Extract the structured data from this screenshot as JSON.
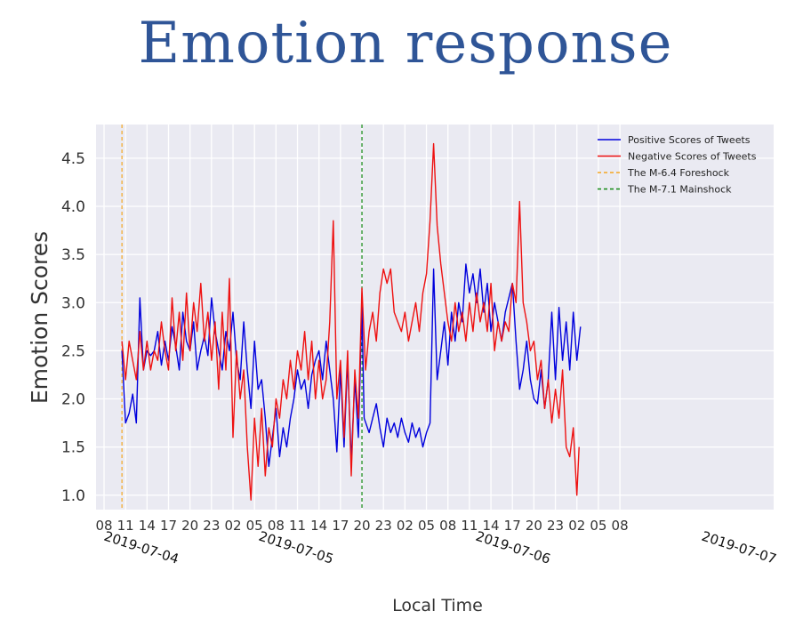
{
  "slide_title": "Emotion response",
  "chart_data": {
    "type": "line",
    "ylabel": "Emotion Scores",
    "xlabel": "Local Time",
    "x_hours_from": "2019-07-04 08:00",
    "x_tick_labels": [
      "08",
      "11",
      "14",
      "17",
      "20",
      "23",
      "02",
      "05",
      "08",
      "11",
      "14",
      "17",
      "20",
      "23",
      "02",
      "05",
      "08",
      "11",
      "14",
      "17",
      "20",
      "23",
      "02",
      "05",
      "08"
    ],
    "date_labels": [
      "2019-07-04",
      "2019-07-05",
      "2019-07-06",
      "2019-07-07"
    ],
    "y_ticks": [
      1.0,
      1.5,
      2.0,
      2.5,
      3.0,
      3.5,
      4.0,
      4.5
    ],
    "ylim": [
      0.85,
      4.85
    ],
    "grid": true,
    "legend_position": "top-right",
    "legend": [
      {
        "label": "Positive Scores of Tweets",
        "color": "#0000dd",
        "style": "solid"
      },
      {
        "label": "Negative Scores of Tweets",
        "color": "#ee1111",
        "style": "solid"
      },
      {
        "label": "The M-6.4 Foreshock",
        "color": "#f5a623",
        "style": "dashed"
      },
      {
        "label": "The M-7.1 Mainshock",
        "color": "#118811",
        "style": "dashed"
      }
    ],
    "vlines": [
      {
        "label": "The M-6.4 Foreshock",
        "x": 2.5,
        "color": "#f5a623"
      },
      {
        "label": "The M-7.1 Mainshock",
        "x": 36.0,
        "color": "#118811"
      }
    ],
    "series": [
      {
        "name": "Positive Scores of Tweets",
        "color": "#0000dd",
        "points": [
          [
            2.5,
            2.5
          ],
          [
            3.0,
            1.75
          ],
          [
            3.5,
            1.85
          ],
          [
            4.0,
            2.05
          ],
          [
            4.5,
            1.75
          ],
          [
            5.0,
            3.05
          ],
          [
            5.5,
            2.3
          ],
          [
            6.0,
            2.5
          ],
          [
            6.5,
            2.45
          ],
          [
            7.0,
            2.5
          ],
          [
            7.5,
            2.7
          ],
          [
            8.0,
            2.35
          ],
          [
            8.5,
            2.6
          ],
          [
            9.0,
            2.4
          ],
          [
            9.5,
            2.75
          ],
          [
            10.0,
            2.55
          ],
          [
            10.5,
            2.3
          ],
          [
            11.0,
            2.9
          ],
          [
            11.5,
            2.6
          ],
          [
            12.0,
            2.5
          ],
          [
            12.5,
            2.8
          ],
          [
            13.0,
            2.3
          ],
          [
            13.5,
            2.5
          ],
          [
            14.0,
            2.65
          ],
          [
            14.5,
            2.45
          ],
          [
            15.0,
            3.05
          ],
          [
            15.5,
            2.7
          ],
          [
            16.0,
            2.5
          ],
          [
            16.5,
            2.3
          ],
          [
            17.0,
            2.7
          ],
          [
            17.5,
            2.5
          ],
          [
            18.0,
            2.9
          ],
          [
            18.5,
            2.4
          ],
          [
            19.0,
            2.2
          ],
          [
            19.5,
            2.8
          ],
          [
            20.0,
            2.3
          ],
          [
            20.5,
            1.9
          ],
          [
            21.0,
            2.6
          ],
          [
            21.5,
            2.1
          ],
          [
            22.0,
            2.2
          ],
          [
            22.5,
            1.8
          ],
          [
            23.0,
            1.3
          ],
          [
            23.5,
            1.6
          ],
          [
            24.0,
            1.9
          ],
          [
            24.5,
            1.4
          ],
          [
            25.0,
            1.7
          ],
          [
            25.5,
            1.5
          ],
          [
            26.0,
            1.8
          ],
          [
            26.5,
            2.0
          ],
          [
            27.0,
            2.3
          ],
          [
            27.5,
            2.1
          ],
          [
            28.0,
            2.2
          ],
          [
            28.5,
            1.9
          ],
          [
            29.0,
            2.25
          ],
          [
            29.5,
            2.4
          ],
          [
            30.0,
            2.5
          ],
          [
            30.5,
            2.2
          ],
          [
            31.0,
            2.6
          ],
          [
            31.5,
            2.3
          ],
          [
            32.0,
            2.0
          ],
          [
            32.5,
            1.45
          ],
          [
            33.0,
            2.3
          ],
          [
            33.5,
            1.5
          ],
          [
            34.0,
            2.4
          ],
          [
            34.5,
            1.35
          ],
          [
            35.0,
            2.2
          ],
          [
            35.5,
            1.6
          ],
          [
            36.0,
            2.95
          ],
          [
            36.3,
            1.8
          ],
          [
            37.0,
            1.65
          ],
          [
            37.5,
            1.8
          ],
          [
            38.0,
            1.95
          ],
          [
            38.5,
            1.7
          ],
          [
            39.0,
            1.5
          ],
          [
            39.5,
            1.8
          ],
          [
            40.0,
            1.65
          ],
          [
            40.5,
            1.75
          ],
          [
            41.0,
            1.6
          ],
          [
            41.5,
            1.8
          ],
          [
            42.0,
            1.65
          ],
          [
            42.5,
            1.55
          ],
          [
            43.0,
            1.75
          ],
          [
            43.5,
            1.6
          ],
          [
            44.0,
            1.7
          ],
          [
            44.5,
            1.5
          ],
          [
            45.0,
            1.65
          ],
          [
            45.5,
            1.75
          ],
          [
            46.0,
            3.35
          ],
          [
            46.5,
            2.2
          ],
          [
            47.0,
            2.5
          ],
          [
            47.5,
            2.8
          ],
          [
            48.0,
            2.35
          ],
          [
            48.5,
            2.9
          ],
          [
            49.0,
            2.6
          ],
          [
            49.5,
            3.0
          ],
          [
            50.0,
            2.8
          ],
          [
            50.5,
            3.4
          ],
          [
            51.0,
            3.1
          ],
          [
            51.5,
            3.3
          ],
          [
            52.0,
            3.0
          ],
          [
            52.5,
            3.35
          ],
          [
            53.0,
            2.9
          ],
          [
            53.5,
            3.2
          ],
          [
            54.0,
            2.7
          ],
          [
            54.5,
            3.0
          ],
          [
            55.0,
            2.8
          ],
          [
            55.5,
            2.6
          ],
          [
            56.0,
            2.9
          ],
          [
            56.5,
            3.05
          ],
          [
            57.0,
            3.2
          ],
          [
            57.5,
            2.6
          ],
          [
            58.0,
            2.1
          ],
          [
            58.5,
            2.3
          ],
          [
            59.0,
            2.6
          ],
          [
            59.5,
            2.2
          ],
          [
            60.0,
            2.0
          ],
          [
            60.5,
            1.95
          ],
          [
            61.0,
            2.3
          ],
          [
            61.5,
            1.9
          ],
          [
            62.0,
            2.2
          ],
          [
            62.5,
            2.9
          ],
          [
            63.0,
            2.2
          ],
          [
            63.5,
            2.95
          ],
          [
            64.0,
            2.4
          ],
          [
            64.5,
            2.8
          ],
          [
            65.0,
            2.3
          ],
          [
            65.5,
            2.9
          ],
          [
            66.0,
            2.4
          ],
          [
            66.5,
            2.75
          ]
        ]
      },
      {
        "name": "Negative Scores of Tweets",
        "color": "#ee1111",
        "points": [
          [
            2.5,
            2.6
          ],
          [
            3.0,
            2.2
          ],
          [
            3.5,
            2.6
          ],
          [
            4.0,
            2.4
          ],
          [
            4.5,
            2.2
          ],
          [
            5.0,
            2.7
          ],
          [
            5.5,
            2.3
          ],
          [
            6.0,
            2.6
          ],
          [
            6.5,
            2.3
          ],
          [
            7.0,
            2.5
          ],
          [
            7.5,
            2.4
          ],
          [
            8.0,
            2.8
          ],
          [
            8.5,
            2.5
          ],
          [
            9.0,
            2.3
          ],
          [
            9.5,
            3.05
          ],
          [
            10.0,
            2.5
          ],
          [
            10.5,
            2.9
          ],
          [
            11.0,
            2.4
          ],
          [
            11.5,
            3.1
          ],
          [
            12.0,
            2.5
          ],
          [
            12.5,
            3.0
          ],
          [
            13.0,
            2.7
          ],
          [
            13.5,
            3.2
          ],
          [
            14.0,
            2.6
          ],
          [
            14.5,
            2.9
          ],
          [
            15.0,
            2.4
          ],
          [
            15.5,
            2.8
          ],
          [
            16.0,
            2.1
          ],
          [
            16.5,
            2.9
          ],
          [
            17.0,
            2.3
          ],
          [
            17.5,
            3.25
          ],
          [
            18.0,
            1.6
          ],
          [
            18.5,
            2.5
          ],
          [
            19.0,
            2.0
          ],
          [
            19.5,
            2.3
          ],
          [
            20.0,
            1.5
          ],
          [
            20.5,
            0.95
          ],
          [
            21.0,
            1.8
          ],
          [
            21.5,
            1.3
          ],
          [
            22.0,
            1.9
          ],
          [
            22.5,
            1.2
          ],
          [
            23.0,
            1.7
          ],
          [
            23.5,
            1.5
          ],
          [
            24.0,
            2.0
          ],
          [
            24.5,
            1.8
          ],
          [
            25.0,
            2.2
          ],
          [
            25.5,
            2.0
          ],
          [
            26.0,
            2.4
          ],
          [
            26.5,
            2.1
          ],
          [
            27.0,
            2.5
          ],
          [
            27.5,
            2.3
          ],
          [
            28.0,
            2.7
          ],
          [
            28.5,
            2.2
          ],
          [
            29.0,
            2.6
          ],
          [
            29.5,
            2.0
          ],
          [
            30.0,
            2.4
          ],
          [
            30.5,
            2.0
          ],
          [
            31.0,
            2.2
          ],
          [
            31.5,
            2.8
          ],
          [
            32.0,
            3.85
          ],
          [
            32.5,
            2.0
          ],
          [
            33.0,
            2.4
          ],
          [
            33.5,
            1.6
          ],
          [
            34.0,
            2.5
          ],
          [
            34.5,
            1.2
          ],
          [
            35.0,
            2.3
          ],
          [
            35.5,
            1.8
          ],
          [
            36.0,
            3.15
          ],
          [
            36.5,
            2.3
          ],
          [
            37.0,
            2.7
          ],
          [
            37.5,
            2.9
          ],
          [
            38.0,
            2.6
          ],
          [
            38.5,
            3.1
          ],
          [
            39.0,
            3.35
          ],
          [
            39.5,
            3.2
          ],
          [
            40.0,
            3.35
          ],
          [
            40.5,
            2.9
          ],
          [
            41.0,
            2.8
          ],
          [
            41.5,
            2.7
          ],
          [
            42.0,
            2.9
          ],
          [
            42.5,
            2.6
          ],
          [
            43.0,
            2.8
          ],
          [
            43.5,
            3.0
          ],
          [
            44.0,
            2.7
          ],
          [
            44.5,
            3.1
          ],
          [
            45.0,
            3.3
          ],
          [
            45.5,
            3.85
          ],
          [
            46.0,
            4.65
          ],
          [
            46.5,
            3.8
          ],
          [
            47.0,
            3.4
          ],
          [
            47.5,
            3.1
          ],
          [
            48.0,
            2.8
          ],
          [
            48.5,
            2.6
          ],
          [
            49.0,
            3.0
          ],
          [
            49.5,
            2.7
          ],
          [
            50.0,
            2.9
          ],
          [
            50.5,
            2.6
          ],
          [
            51.0,
            3.0
          ],
          [
            51.5,
            2.7
          ],
          [
            52.0,
            3.1
          ],
          [
            52.5,
            2.8
          ],
          [
            53.0,
            3.0
          ],
          [
            53.5,
            2.7
          ],
          [
            54.0,
            3.2
          ],
          [
            54.5,
            2.5
          ],
          [
            55.0,
            2.8
          ],
          [
            55.5,
            2.6
          ],
          [
            56.0,
            2.8
          ],
          [
            56.5,
            2.7
          ],
          [
            57.0,
            3.2
          ],
          [
            57.5,
            3.0
          ],
          [
            58.0,
            4.05
          ],
          [
            58.5,
            3.0
          ],
          [
            59.0,
            2.8
          ],
          [
            59.5,
            2.5
          ],
          [
            60.0,
            2.6
          ],
          [
            60.5,
            2.2
          ],
          [
            61.0,
            2.4
          ],
          [
            61.5,
            1.9
          ],
          [
            62.0,
            2.2
          ],
          [
            62.5,
            1.75
          ],
          [
            63.0,
            2.1
          ],
          [
            63.5,
            1.8
          ],
          [
            64.0,
            2.3
          ],
          [
            64.5,
            1.5
          ],
          [
            65.0,
            1.4
          ],
          [
            65.5,
            1.7
          ],
          [
            66.0,
            1.0
          ],
          [
            66.3,
            1.5
          ]
        ]
      }
    ]
  }
}
